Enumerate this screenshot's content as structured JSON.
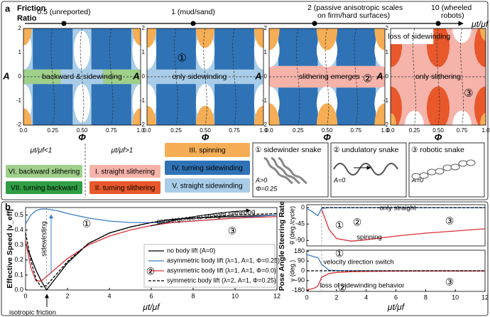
{
  "panel_a": {
    "label": "a",
    "title_lines": [
      "Friction",
      "Ratio"
    ],
    "ratio_axis": {
      "label": "μt/μf",
      "points": [
        [
          "0.5 (unreported)"
        ],
        [
          "1 (mud/sand)"
        ],
        [
          "2   (passive anisotropic scales",
          "on firm/hard surfaces)"
        ],
        [
          "10   (wheeled",
          "robots)"
        ]
      ]
    },
    "map_axes": {
      "xlabel": "Φ",
      "ylabel": "A",
      "xticks": [
        "0.0",
        "0.25",
        "0.50",
        "0.75",
        "1.0"
      ],
      "yticks": [
        "2",
        "1",
        "0",
        "-1",
        "-2"
      ]
    },
    "maps": [
      {
        "labels": [
          "backward & sidewinding"
        ]
      },
      {
        "labels": [
          "only sidewinding"
        ],
        "marker": "①"
      },
      {
        "labels": [
          "slithering emerges"
        ],
        "marker": "②"
      },
      {
        "labels": [
          "only slithering",
          "loss of sidewinding"
        ],
        "marker": "③"
      }
    ],
    "legend": {
      "headers": [
        "μt/μf<1",
        "μt/μf>1"
      ],
      "items": [
        {
          "text": "VI. backward slithering",
          "color": "#9fd08a"
        },
        {
          "text": "VII. turning backward",
          "color": "#2f9e44"
        },
        {
          "text": "I. straight slithering",
          "color": "#f6b3aa"
        },
        {
          "text": "II. turning slithering",
          "color": "#e8582b"
        },
        {
          "text": "III. spinning",
          "color": "#f5ae55"
        },
        {
          "text": "IV. turning sidewinding",
          "color": "#2f72b5"
        },
        {
          "text": "V. straight sidewinding",
          "color": "#a9cde8"
        }
      ]
    },
    "snakes": [
      {
        "title": "① sidewinder snake",
        "params": [
          "A>0",
          "Φ=0.25"
        ]
      },
      {
        "title": "② undulatory snake",
        "params": [
          "A=0"
        ]
      },
      {
        "title": "③ robotic snake",
        "params": [
          "A=0"
        ]
      }
    ]
  },
  "panel_b": {
    "label": "b"
  },
  "chart_data": [
    {
      "type": "line",
      "ylabel": "Effective Speed |v_eff|",
      "xlabel": "μt/μf",
      "xlim": [
        0,
        12
      ],
      "xticks": [
        0,
        2,
        4,
        6,
        8,
        10,
        12
      ],
      "ylim": [
        0,
        0.55
      ],
      "yticks": [
        {
          "value": 0,
          "label": "0.0"
        },
        0.1,
        0.2,
        0.3,
        0.4,
        0.5
      ],
      "reference_x": 1,
      "legend": true,
      "x": [
        0,
        0.25,
        0.5,
        0.75,
        1,
        1.5,
        2,
        3,
        4,
        5,
        6,
        7,
        8,
        10,
        12
      ],
      "series": [
        {
          "name": "no body lift (A=0)",
          "color": "#000000",
          "style": "solid",
          "values": [
            0.31,
            0.22,
            0.13,
            0.06,
            0.0,
            0.09,
            0.18,
            0.31,
            0.38,
            0.42,
            0.45,
            0.47,
            0.48,
            0.49,
            0.5
          ]
        },
        {
          "name": "asymmetric body lift (λ=1, A=1, Φ=0.25)",
          "color": "#3b7fc4",
          "style": "solid",
          "values": [
            0.44,
            0.5,
            0.53,
            0.54,
            0.54,
            0.53,
            0.51,
            0.48,
            0.46,
            0.45,
            0.45,
            0.45,
            0.46,
            0.48,
            0.5
          ]
        },
        {
          "name": "asymmetric body lift (λ=1, A=1, Φ=0.0)",
          "color": "#d9323a",
          "style": "solid",
          "values": [
            0.33,
            0.15,
            0.06,
            0.06,
            0.09,
            0.15,
            0.21,
            0.3,
            0.36,
            0.4,
            0.43,
            0.45,
            0.46,
            0.48,
            0.49
          ]
        },
        {
          "name": "symmetric body lift (λ=2, A=1, Φ=0.25)",
          "color": "#000000",
          "style": "dashed",
          "values": [
            0.38,
            0.2,
            0.07,
            0.02,
            0.03,
            0.11,
            0.19,
            0.31,
            0.38,
            0.42,
            0.45,
            0.47,
            0.48,
            0.5,
            0.51
          ]
        }
      ],
      "annotations": [
        "sidewinding",
        "convergence to straight slithering",
        "isotropic friction",
        "①",
        "②",
        "③"
      ]
    },
    {
      "type": "line",
      "ylabel": "Steering Rate",
      "ylabel2": "θ̇ (deg./cycle)",
      "xlim": [
        0,
        12
      ],
      "ylim": [
        -105,
        8
      ],
      "yticks": [
        0,
        -45,
        -90
      ],
      "reference_x": 1,
      "x": [
        0,
        0.25,
        0.5,
        0.75,
        1,
        1.5,
        2,
        3,
        4,
        6,
        8,
        10,
        12
      ],
      "series": [
        {
          "color": "#3b7fc4",
          "style": "solid",
          "values": [
            -3,
            -8,
            -15,
            -22,
            -2,
            0,
            0,
            0,
            0,
            0,
            0,
            0,
            0
          ]
        },
        {
          "color": "#d9323a",
          "style": "solid",
          "values": [
            null,
            null,
            null,
            null,
            -5,
            -60,
            -85,
            -92,
            -88,
            -78,
            -70,
            -64,
            -58
          ]
        },
        {
          "color": "#000000",
          "style": "dashed",
          "values": [
            null,
            null,
            null,
            null,
            0,
            0,
            0,
            0,
            0,
            0,
            0,
            0,
            0
          ]
        }
      ],
      "annotations": [
        "only straight",
        "spinning",
        "①",
        "②",
        "③"
      ]
    },
    {
      "type": "line",
      "ylabel": "Pose Angle",
      "ylabel2": "γ (deg.)",
      "xlabel": "μt/μf",
      "xlim": [
        0,
        12
      ],
      "xticks": [
        0,
        2,
        4,
        6,
        8,
        10,
        12
      ],
      "ylim": [
        -190,
        190
      ],
      "yticks": [
        180,
        90,
        0,
        -90,
        -180
      ],
      "reference_x": 1,
      "x": [
        0,
        0.25,
        0.5,
        0.75,
        1,
        1.5,
        2,
        3,
        4,
        6,
        8,
        10,
        12
      ],
      "series": [
        {
          "color": "#3b7fc4",
          "style": "solid",
          "values": [
            150,
            140,
            130,
            120,
            60,
            5,
            2,
            0,
            0,
            0,
            0,
            0,
            0
          ]
        },
        {
          "color": "#d9323a",
          "style": "solid",
          "values": [
            -175,
            -170,
            -160,
            -140,
            -60,
            -25,
            -15,
            -8,
            -5,
            -3,
            -2,
            -2,
            -1
          ]
        },
        {
          "color": "#000000",
          "style": "dashed",
          "values": [
            0,
            0,
            0,
            0,
            0,
            0,
            0,
            0,
            0,
            0,
            0,
            0,
            0
          ]
        }
      ],
      "annotations": [
        "velocity direction switch",
        "loss of sidewinding behavior",
        "①",
        "②",
        "③"
      ]
    }
  ]
}
